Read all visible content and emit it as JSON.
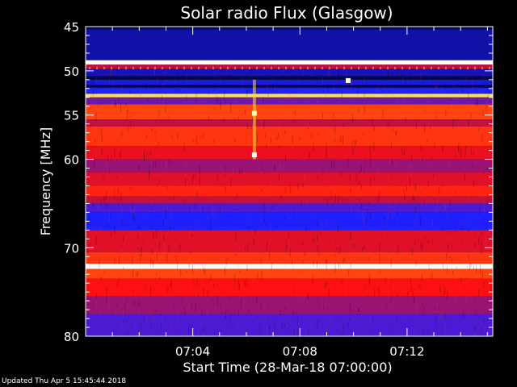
{
  "chart_data": {
    "type": "heatmap",
    "title": "Solar radio Flux (Glasgow)",
    "xlabel": "Start Time (28-Mar-18 07:00:00)",
    "ylabel": "Frequency [MHz]",
    "x_range_minutes": [
      0,
      15.2
    ],
    "ylim": [
      45,
      80
    ],
    "y_inverted": true,
    "x_ticks": [
      {
        "value": 4,
        "label": "07:04"
      },
      {
        "value": 8,
        "label": "07:08"
      },
      {
        "value": 12,
        "label": "07:12"
      }
    ],
    "y_ticks": [
      {
        "value": 45,
        "label": "45"
      },
      {
        "value": 50,
        "label": "50"
      },
      {
        "value": 55,
        "label": "55"
      },
      {
        "value": 60,
        "label": "60"
      },
      {
        "value": 70,
        "label": "70"
      },
      {
        "value": 80,
        "label": "80"
      }
    ],
    "y_minor_ticks": [
      46,
      47,
      48,
      49,
      51,
      52,
      53,
      54,
      56,
      57,
      58,
      59,
      61,
      62,
      63,
      64,
      65,
      66,
      67,
      68,
      69,
      71,
      72,
      73,
      74,
      75,
      76,
      77,
      78,
      79
    ],
    "x_minor_ticks": [
      1,
      2,
      3,
      5,
      6,
      7,
      9,
      10,
      11,
      13,
      14,
      15
    ],
    "frequency_bands": [
      {
        "from": 45,
        "to": 45.3,
        "intensity": 0.05
      },
      {
        "from": 45.3,
        "to": 48.8,
        "intensity": 0.12
      },
      {
        "from": 48.8,
        "to": 49.3,
        "intensity": 1.0
      },
      {
        "from": 49.3,
        "to": 49.8,
        "intensity": 0.45
      },
      {
        "from": 49.8,
        "to": 50.6,
        "intensity": 0.14
      },
      {
        "from": 50.6,
        "to": 51.0,
        "intensity": 0.05
      },
      {
        "from": 51.0,
        "to": 51.6,
        "intensity": 0.18
      },
      {
        "from": 51.6,
        "to": 51.9,
        "intensity": 0.05
      },
      {
        "from": 51.9,
        "to": 52.6,
        "intensity": 0.22
      },
      {
        "from": 52.6,
        "to": 53.0,
        "intensity": 0.82
      },
      {
        "from": 53.0,
        "to": 53.8,
        "intensity": 0.35
      },
      {
        "from": 53.8,
        "to": 55.5,
        "intensity": 0.62
      },
      {
        "from": 55.5,
        "to": 56.3,
        "intensity": 0.45
      },
      {
        "from": 56.3,
        "to": 58.5,
        "intensity": 0.6
      },
      {
        "from": 58.5,
        "to": 60.0,
        "intensity": 0.52
      },
      {
        "from": 60.0,
        "to": 61.5,
        "intensity": 0.4
      },
      {
        "from": 61.5,
        "to": 63.0,
        "intensity": 0.5
      },
      {
        "from": 63.0,
        "to": 64.2,
        "intensity": 0.58
      },
      {
        "from": 64.2,
        "to": 65.0,
        "intensity": 0.45
      },
      {
        "from": 65.0,
        "to": 66.0,
        "intensity": 0.3
      },
      {
        "from": 66.0,
        "to": 68.0,
        "intensity": 0.22
      },
      {
        "from": 68.0,
        "to": 70.5,
        "intensity": 0.5
      },
      {
        "from": 70.5,
        "to": 71.8,
        "intensity": 0.6
      },
      {
        "from": 71.8,
        "to": 72.4,
        "intensity": 1.0
      },
      {
        "from": 72.4,
        "to": 73.5,
        "intensity": 0.62
      },
      {
        "from": 73.5,
        "to": 75.5,
        "intensity": 0.55
      },
      {
        "from": 75.5,
        "to": 77.5,
        "intensity": 0.4
      },
      {
        "from": 77.5,
        "to": 80.0,
        "intensity": 0.3
      }
    ],
    "burst_column": {
      "x": 6.3,
      "from": 51.0,
      "to": 60.0,
      "intensity": 0.8
    },
    "spots": [
      {
        "x": 6.3,
        "y": 54.8,
        "intensity": 0.9
      },
      {
        "x": 6.3,
        "y": 59.5,
        "intensity": 1.0
      },
      {
        "x": 9.8,
        "y": 51.1,
        "intensity": 0.95
      }
    ],
    "colormap": [
      "#000000",
      "#1010a0",
      "#1e20ff",
      "#6018c0",
      "#c01040",
      "#ff1010",
      "#ff6a10",
      "#ffd020",
      "#ffffa0",
      "#ffffff"
    ]
  },
  "footer": {
    "updated": "Updated Thu Apr  5 15:45:44 2018"
  }
}
